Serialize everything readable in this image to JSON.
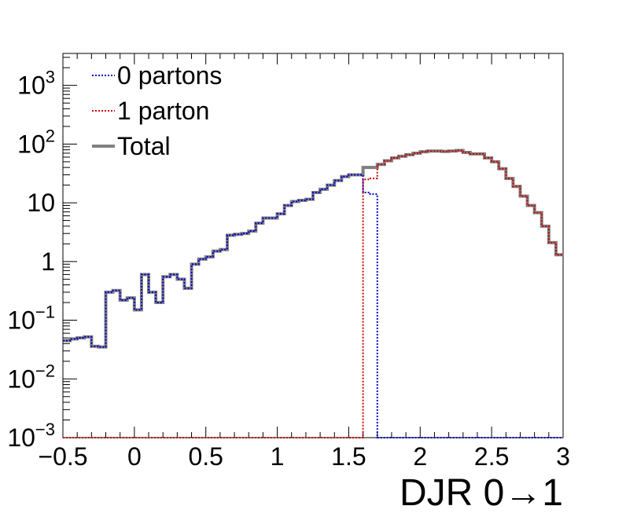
{
  "chart_data": {
    "type": "line",
    "subtype": "step-histogram",
    "xlabel": "DJR 0→1",
    "ylabel": "",
    "xlim": [
      -0.5,
      3.0
    ],
    "ylim": [
      0.001,
      3500
    ],
    "yscale": "log",
    "grid": false,
    "legend_position": "top-left",
    "x_ticks": [
      "−0.5",
      "0",
      "0.5",
      "1",
      "1.5",
      "2",
      "2.5",
      "3"
    ],
    "x_tick_values": [
      -0.5,
      0,
      0.5,
      1,
      1.5,
      2,
      2.5,
      3
    ],
    "y_ticks": [
      {
        "value": 0.001,
        "base": "10",
        "exp": "−3"
      },
      {
        "value": 0.01,
        "base": "10",
        "exp": "−2"
      },
      {
        "value": 0.1,
        "base": "10",
        "exp": "−1"
      },
      {
        "value": 1,
        "base": "1",
        "exp": ""
      },
      {
        "value": 10,
        "base": "10",
        "exp": ""
      },
      {
        "value": 100,
        "base": "10",
        "exp": "2"
      },
      {
        "value": 1000,
        "base": "10",
        "exp": "3"
      }
    ],
    "bin_width": 0.05,
    "x_start": -0.5,
    "series": [
      {
        "name": "0 partons",
        "color": "#0000cc",
        "style": "dotted",
        "values": [
          0.045,
          0.048,
          0.05,
          0.052,
          0.036,
          0.035,
          0.3,
          0.32,
          0.22,
          0.24,
          0.15,
          0.6,
          0.3,
          0.2,
          0.55,
          0.6,
          0.5,
          0.35,
          0.9,
          1.1,
          1.2,
          1.5,
          1.6,
          2.8,
          2.9,
          3.0,
          3.3,
          4.5,
          5.5,
          5.5,
          6.5,
          9.0,
          10.5,
          11.0,
          11.5,
          15.0,
          17.0,
          20.0,
          24.0,
          28.0,
          30.0,
          30.0,
          15.0,
          14.0,
          0.001,
          0.001,
          0.001,
          0.001,
          0.001,
          0.001,
          0.001,
          0.001,
          0.001,
          0.001,
          0.001,
          0.001,
          0.001,
          0.001,
          0.001,
          0.001,
          0.001,
          0.001,
          0.001,
          0.001,
          0.001,
          0.001,
          0.001,
          0.001,
          0.001,
          0.001
        ]
      },
      {
        "name": "1 parton",
        "color": "#cc0000",
        "style": "dotted",
        "values": [
          0.001,
          0.001,
          0.001,
          0.001,
          0.001,
          0.001,
          0.001,
          0.001,
          0.001,
          0.001,
          0.001,
          0.001,
          0.001,
          0.001,
          0.001,
          0.001,
          0.001,
          0.001,
          0.001,
          0.001,
          0.001,
          0.001,
          0.001,
          0.001,
          0.001,
          0.001,
          0.001,
          0.001,
          0.001,
          0.001,
          0.001,
          0.001,
          0.001,
          0.001,
          0.001,
          0.001,
          0.001,
          0.001,
          0.001,
          0.001,
          0.001,
          0.001,
          25.0,
          26.0,
          45.0,
          52.0,
          58.0,
          62.0,
          66.0,
          70.0,
          74.0,
          76.0,
          76.0,
          75.0,
          76.0,
          78.0,
          72.0,
          68.0,
          68.0,
          58.0,
          50.0,
          38.0,
          26.0,
          19.0,
          13.0,
          9.0,
          6.8,
          4.0,
          2.1,
          1.3
        ]
      },
      {
        "name": "Total",
        "color": "#808080",
        "style": "solid",
        "values": [
          0.045,
          0.048,
          0.05,
          0.052,
          0.036,
          0.035,
          0.3,
          0.32,
          0.22,
          0.24,
          0.15,
          0.6,
          0.3,
          0.2,
          0.55,
          0.6,
          0.5,
          0.35,
          0.9,
          1.1,
          1.2,
          1.5,
          1.6,
          2.8,
          2.9,
          3.0,
          3.3,
          4.5,
          5.5,
          5.5,
          6.5,
          9.0,
          10.5,
          11.0,
          11.5,
          15.0,
          17.0,
          20.0,
          24.0,
          28.0,
          30.0,
          30.0,
          40.0,
          40.0,
          45.0,
          52.0,
          58.0,
          62.0,
          66.0,
          70.0,
          74.0,
          76.0,
          76.0,
          75.0,
          76.0,
          78.0,
          72.0,
          68.0,
          68.0,
          58.0,
          50.0,
          38.0,
          26.0,
          19.0,
          13.0,
          9.0,
          6.8,
          4.0,
          2.1,
          1.3
        ]
      }
    ]
  }
}
